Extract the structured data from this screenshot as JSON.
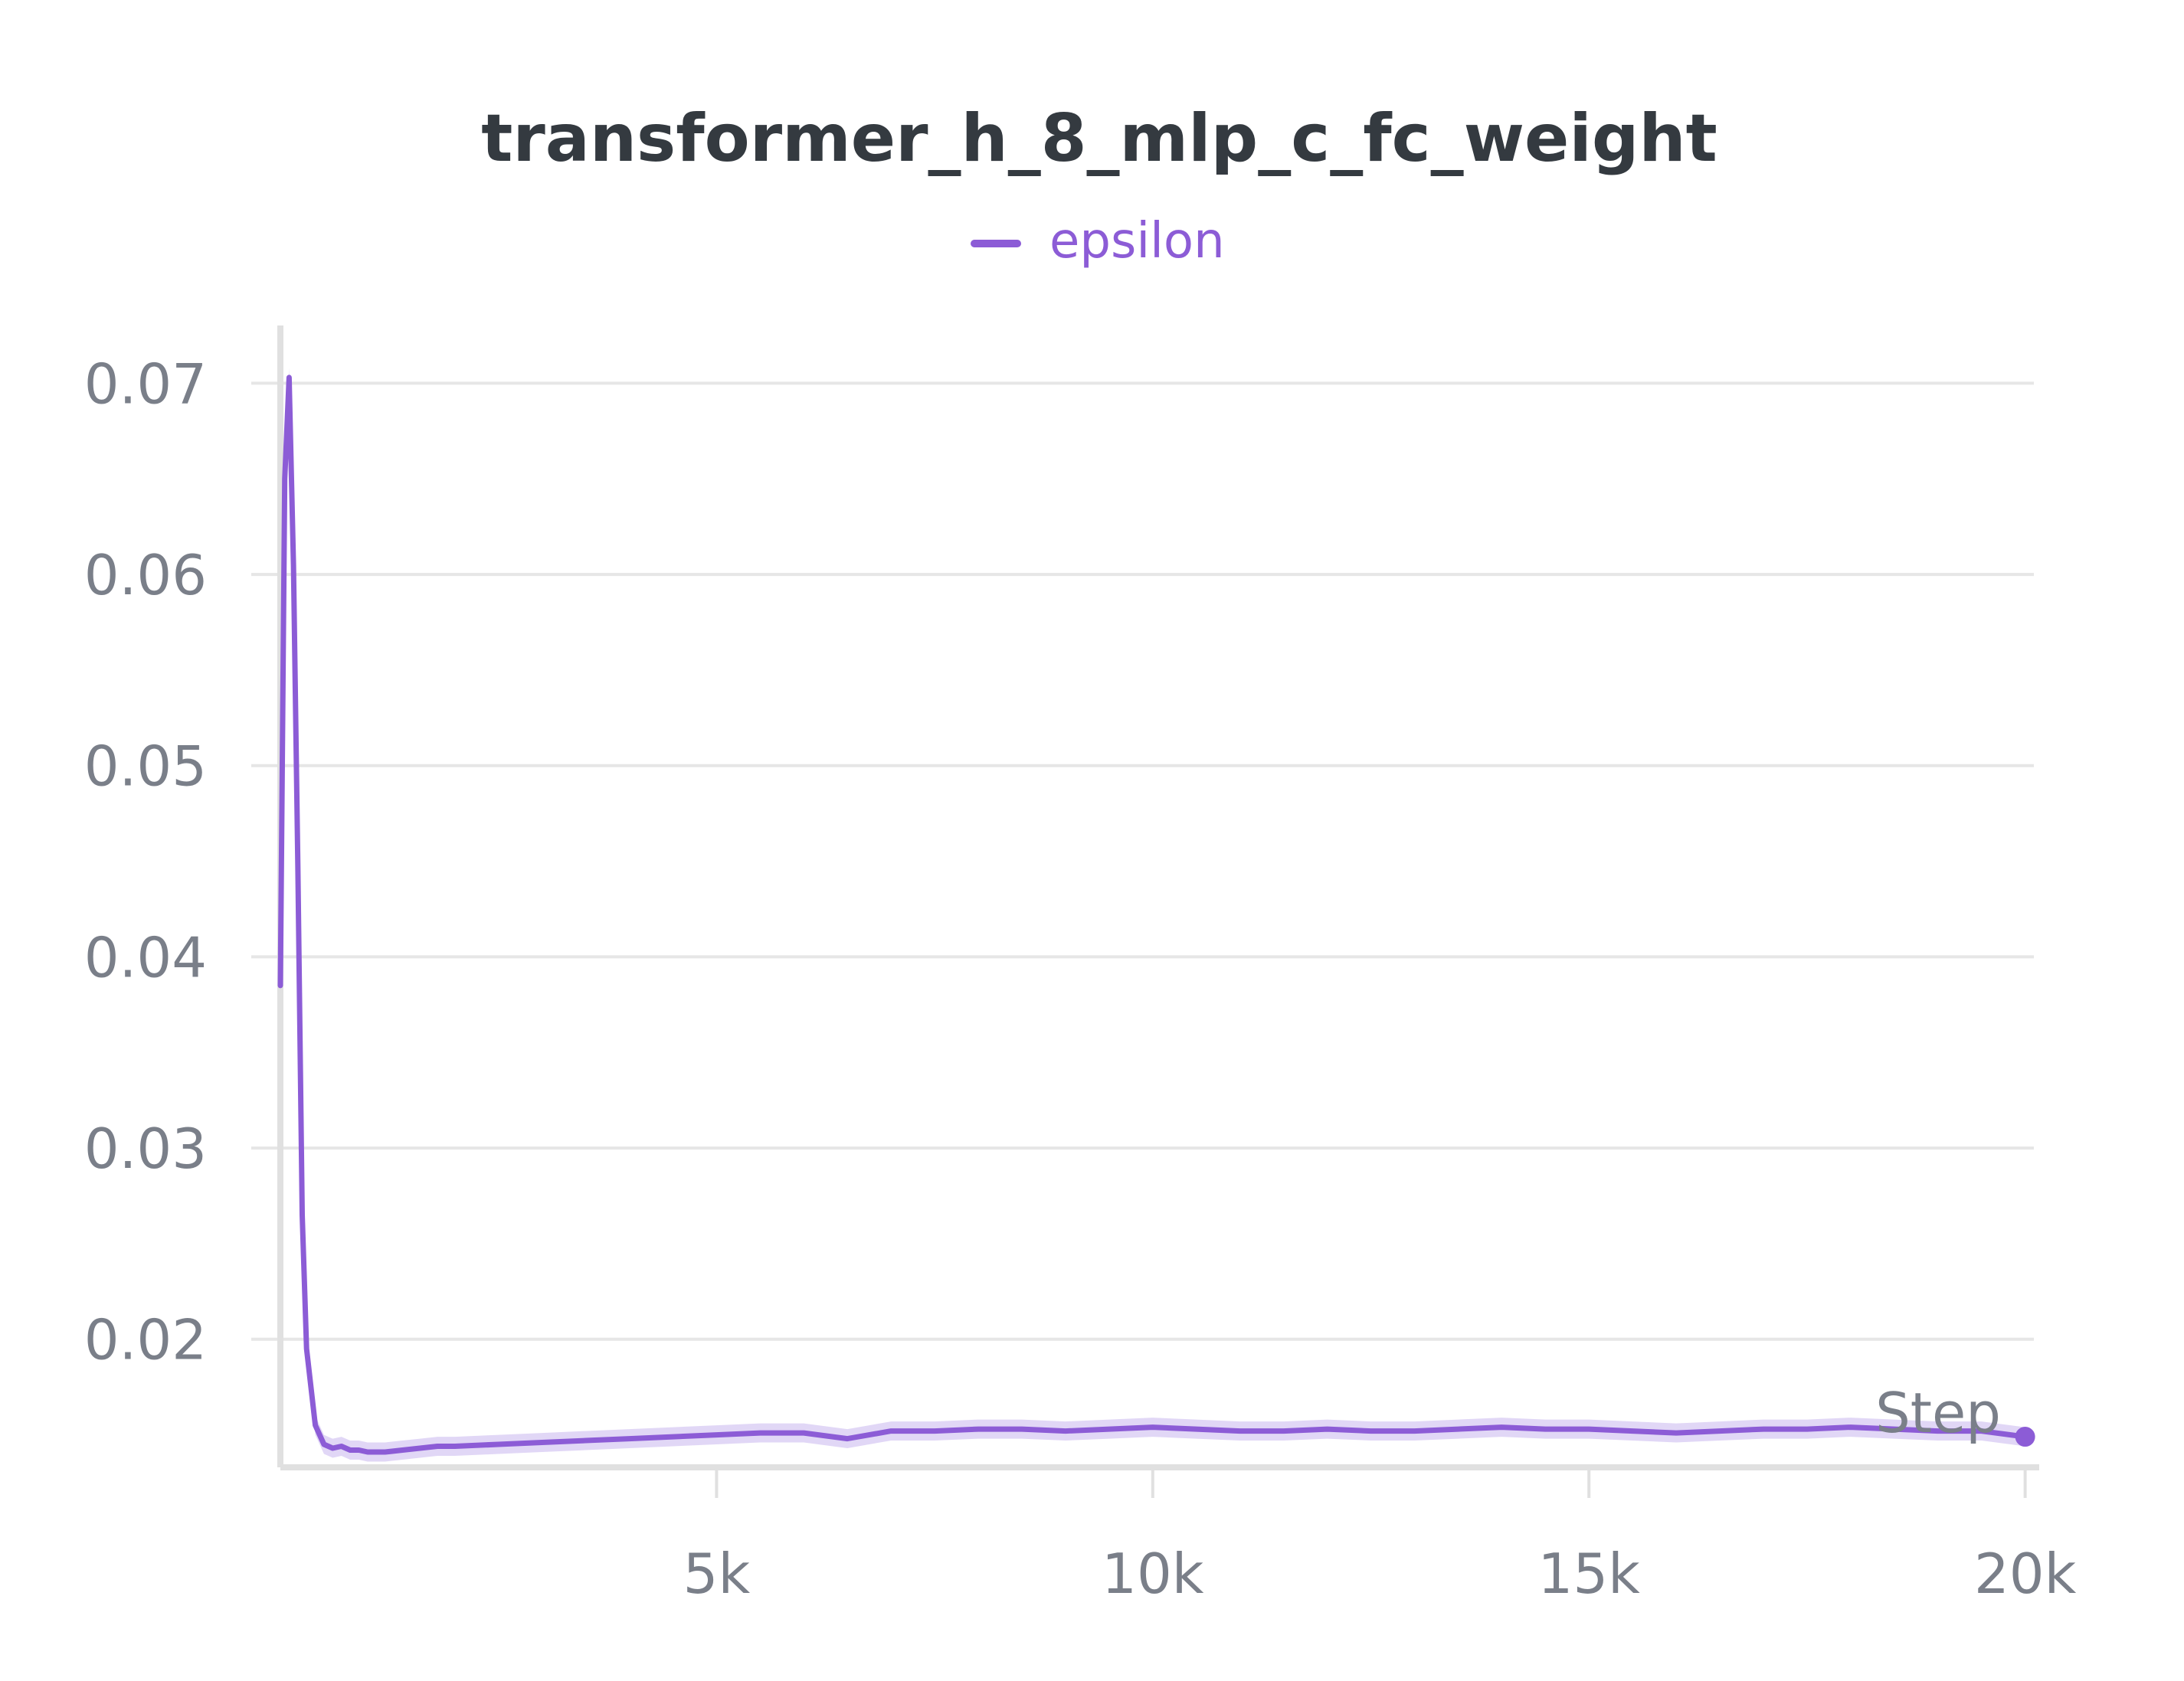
{
  "chart_data": {
    "type": "line",
    "title": "transformer_h_8_mlp_c_fc_weight",
    "legend": {
      "placement": "top-center",
      "entries": [
        "epsilon"
      ]
    },
    "xlabel": "Step",
    "ylabel": "",
    "xlim": [
      0,
      20100
    ],
    "ylim": [
      0.0133,
      0.0725
    ],
    "x_ticks": [
      5000,
      10000,
      15000,
      20000
    ],
    "x_tick_labels": [
      "5k",
      "10k",
      "15k",
      "20k"
    ],
    "y_ticks": [
      0.02,
      0.03,
      0.04,
      0.05,
      0.06,
      0.07
    ],
    "y_tick_labels": [
      "0.02",
      "0.03",
      "0.04",
      "0.05",
      "0.06",
      "0.07"
    ],
    "grid": true,
    "colors": {
      "series": "#8c5cd6",
      "band": "#c9b6ee",
      "title": "#343a40",
      "tick": "#7a7f89",
      "grid": "#e6e6e6",
      "axis": "#e0e0e0"
    },
    "series": [
      {
        "name": "epsilon",
        "x": [
          0,
          50,
          100,
          150,
          200,
          250,
          300,
          400,
          500,
          600,
          700,
          800,
          900,
          1000,
          1200,
          1400,
          1600,
          1800,
          2000,
          2500,
          3000,
          3500,
          4000,
          4500,
          5000,
          5500,
          6000,
          6500,
          7000,
          7500,
          8000,
          8500,
          9000,
          9500,
          10000,
          10500,
          11000,
          11500,
          12000,
          12500,
          13000,
          13500,
          14000,
          14500,
          15000,
          15500,
          16000,
          16500,
          17000,
          17500,
          18000,
          18500,
          19000,
          19500,
          20000
        ],
        "y": [
          0.0385,
          0.065,
          0.0703,
          0.0605,
          0.0448,
          0.0265,
          0.0195,
          0.0155,
          0.0145,
          0.0143,
          0.0144,
          0.0142,
          0.0142,
          0.0141,
          0.0141,
          0.0142,
          0.0143,
          0.0144,
          0.0144,
          0.0145,
          0.0146,
          0.0147,
          0.0148,
          0.0149,
          0.015,
          0.0151,
          0.0151,
          0.0148,
          0.0152,
          0.0152,
          0.0153,
          0.0153,
          0.0152,
          0.0153,
          0.0154,
          0.0153,
          0.0152,
          0.0152,
          0.0153,
          0.0152,
          0.0152,
          0.0153,
          0.0154,
          0.0153,
          0.0153,
          0.0152,
          0.0151,
          0.0152,
          0.0153,
          0.0153,
          0.0154,
          0.0153,
          0.0152,
          0.0152,
          0.0149
        ]
      }
    ]
  }
}
